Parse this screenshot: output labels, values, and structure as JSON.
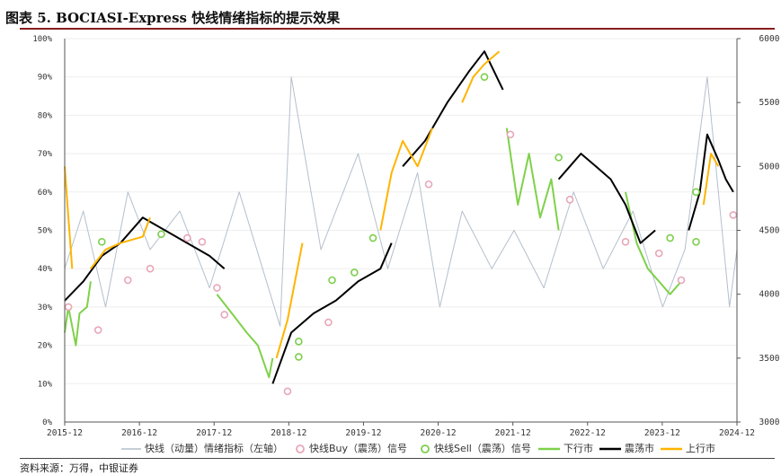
{
  "title": "图表 5. BOCIASI-Express 快线情绪指标的提示效果",
  "source": "资料来源：万得，中银证券",
  "colors": {
    "fast_line": "#b4bfcc",
    "buy": "#e8a6b8",
    "sell": "#7ccf4a",
    "down": "#7fd14a",
    "range": "#000000",
    "up": "#ffb400"
  },
  "legend": [
    {
      "label": "快线（动量）情绪指标（左轴）"
    },
    {
      "label": "快线Buy（震荡）信号"
    },
    {
      "label": "快线Sell（震荡）信号"
    },
    {
      "label": "下行市"
    },
    {
      "label": "震荡市"
    },
    {
      "label": "上行市"
    }
  ],
  "chart_data": {
    "type": "line",
    "x_ticks": [
      "2015-12",
      "2016-12",
      "2017-12",
      "2018-12",
      "2019-12",
      "2020-12",
      "2021-12",
      "2022-12",
      "2023-12",
      "2024-12"
    ],
    "left_axis": {
      "min": 0,
      "max": 100,
      "ticks": [
        "0%",
        "10%",
        "20%",
        "30%",
        "40%",
        "50%",
        "60%",
        "70%",
        "80%",
        "90%",
        "100%"
      ]
    },
    "right_axis": {
      "min": 3000,
      "max": 6000,
      "ticks": [
        "3000",
        "3500",
        "4000",
        "4500",
        "5000",
        "5500",
        "6000"
      ]
    },
    "series": [
      {
        "name": "快线（动量）情绪指标（左轴）",
        "axis": "left",
        "x": [
          2015.95,
          2016.2,
          2016.5,
          2016.8,
          2017.1,
          2017.5,
          2017.9,
          2018.3,
          2018.85,
          2019.0,
          2019.4,
          2019.9,
          2020.3,
          2020.7,
          2021.0,
          2021.3,
          2021.7,
          2022.0,
          2022.4,
          2022.8,
          2023.2,
          2023.6,
          2024.0,
          2024.3,
          2024.6,
          2024.9,
          2025.0
        ],
        "y": [
          40,
          55,
          30,
          60,
          45,
          55,
          35,
          60,
          25,
          90,
          45,
          70,
          40,
          65,
          30,
          55,
          40,
          50,
          35,
          60,
          40,
          55,
          30,
          45,
          90,
          30,
          45
        ]
      },
      {
        "name": "下行市",
        "axis": "right",
        "x": [
          2015.95,
          2016.0,
          2016.1,
          2016.15,
          2016.25,
          2016.3
        ],
        "y": [
          3700,
          3900,
          3600,
          3850,
          3900,
          4100
        ]
      },
      {
        "name": "下行市",
        "axis": "right",
        "x": [
          2018.0,
          2018.2,
          2018.4,
          2018.55,
          2018.7,
          2018.75
        ],
        "y": [
          4000,
          3850,
          3700,
          3600,
          3350,
          3500
        ]
      },
      {
        "name": "下行市",
        "axis": "right",
        "x": [
          2021.9,
          2022.05,
          2022.2,
          2022.35,
          2022.5,
          2022.6
        ],
        "y": [
          5300,
          4700,
          5100,
          4600,
          4900,
          4500
        ]
      },
      {
        "name": "下行市",
        "axis": "right",
        "x": [
          2023.5,
          2023.65,
          2023.8,
          2023.95,
          2024.1,
          2024.25
        ],
        "y": [
          4800,
          4400,
          4200,
          4100,
          4000,
          4100
        ]
      },
      {
        "name": "震荡市",
        "axis": "right",
        "x": [
          2015.95,
          2016.2,
          2016.45,
          2016.7,
          2017.0,
          2017.3,
          2017.6,
          2017.9,
          2018.1
        ],
        "y": [
          3950,
          4100,
          4300,
          4400,
          4600,
          4500,
          4400,
          4300,
          4200
        ]
      },
      {
        "name": "震荡市",
        "axis": "right",
        "x": [
          2018.75,
          2019.0,
          2019.3,
          2019.6,
          2019.9,
          2020.2,
          2020.35
        ],
        "y": [
          3300,
          3700,
          3850,
          3950,
          4100,
          4200,
          4400
        ]
      },
      {
        "name": "震荡市",
        "axis": "right",
        "x": [
          2020.5,
          2020.8,
          2021.1,
          2021.4,
          2021.6,
          2021.85
        ],
        "y": [
          5000,
          5200,
          5500,
          5750,
          5900,
          5600
        ]
      },
      {
        "name": "震荡市",
        "axis": "right",
        "x": [
          2022.6,
          2022.9,
          2023.1,
          2023.3,
          2023.5,
          2023.7,
          2023.9
        ],
        "y": [
          4900,
          5100,
          5000,
          4900,
          4700,
          4400,
          4500
        ]
      },
      {
        "name": "震荡市",
        "axis": "right",
        "x": [
          2024.35,
          2024.5,
          2024.6,
          2024.75,
          2024.85,
          2024.95
        ],
        "y": [
          4500,
          4800,
          5250,
          5050,
          4900,
          4800
        ]
      },
      {
        "name": "上行市",
        "axis": "right",
        "x": [
          2015.95,
          2016.0,
          2016.05
        ],
        "y": [
          5000,
          4600,
          4200
        ]
      },
      {
        "name": "上行市",
        "axis": "right",
        "x": [
          2016.3,
          2016.5,
          2016.7,
          2017.0,
          2017.1
        ],
        "y": [
          4200,
          4350,
          4400,
          4450,
          4600
        ]
      },
      {
        "name": "上行市",
        "axis": "right",
        "x": [
          2018.8,
          2018.95,
          2019.05,
          2019.15
        ],
        "y": [
          3500,
          3800,
          4100,
          4400
        ]
      },
      {
        "name": "上行市",
        "axis": "right",
        "x": [
          2020.2,
          2020.35,
          2020.5,
          2020.7,
          2020.9
        ],
        "y": [
          4500,
          4950,
          5200,
          5000,
          5300
        ]
      },
      {
        "name": "上行市",
        "axis": "right",
        "x": [
          2021.3,
          2021.45,
          2021.6,
          2021.8
        ],
        "y": [
          5500,
          5700,
          5800,
          5900
        ]
      },
      {
        "name": "上行市",
        "axis": "right",
        "x": [
          2024.55,
          2024.65,
          2024.75
        ],
        "y": [
          4700,
          5100,
          5000
        ]
      }
    ],
    "buy_signals": [
      {
        "x": 2016.0,
        "y": 30
      },
      {
        "x": 2016.4,
        "y": 24
      },
      {
        "x": 2016.8,
        "y": 37
      },
      {
        "x": 2017.1,
        "y": 40
      },
      {
        "x": 2017.6,
        "y": 48
      },
      {
        "x": 2017.8,
        "y": 47
      },
      {
        "x": 2018.0,
        "y": 35
      },
      {
        "x": 2018.1,
        "y": 28
      },
      {
        "x": 2018.95,
        "y": 8
      },
      {
        "x": 2019.5,
        "y": 26
      },
      {
        "x": 2020.85,
        "y": 62
      },
      {
        "x": 2021.95,
        "y": 75
      },
      {
        "x": 2022.75,
        "y": 58
      },
      {
        "x": 2023.5,
        "y": 47
      },
      {
        "x": 2023.95,
        "y": 44
      },
      {
        "x": 2024.25,
        "y": 37
      },
      {
        "x": 2024.95,
        "y": 54
      }
    ],
    "sell_signals": [
      {
        "x": 2016.45,
        "y": 47
      },
      {
        "x": 2017.25,
        "y": 49
      },
      {
        "x": 2019.1,
        "y": 21
      },
      {
        "x": 2019.1,
        "y": 17
      },
      {
        "x": 2019.55,
        "y": 37
      },
      {
        "x": 2019.85,
        "y": 39
      },
      {
        "x": 2020.1,
        "y": 48
      },
      {
        "x": 2021.6,
        "y": 90
      },
      {
        "x": 2022.6,
        "y": 69
      },
      {
        "x": 2024.1,
        "y": 48
      },
      {
        "x": 2024.45,
        "y": 60
      },
      {
        "x": 2024.45,
        "y": 47
      }
    ]
  }
}
